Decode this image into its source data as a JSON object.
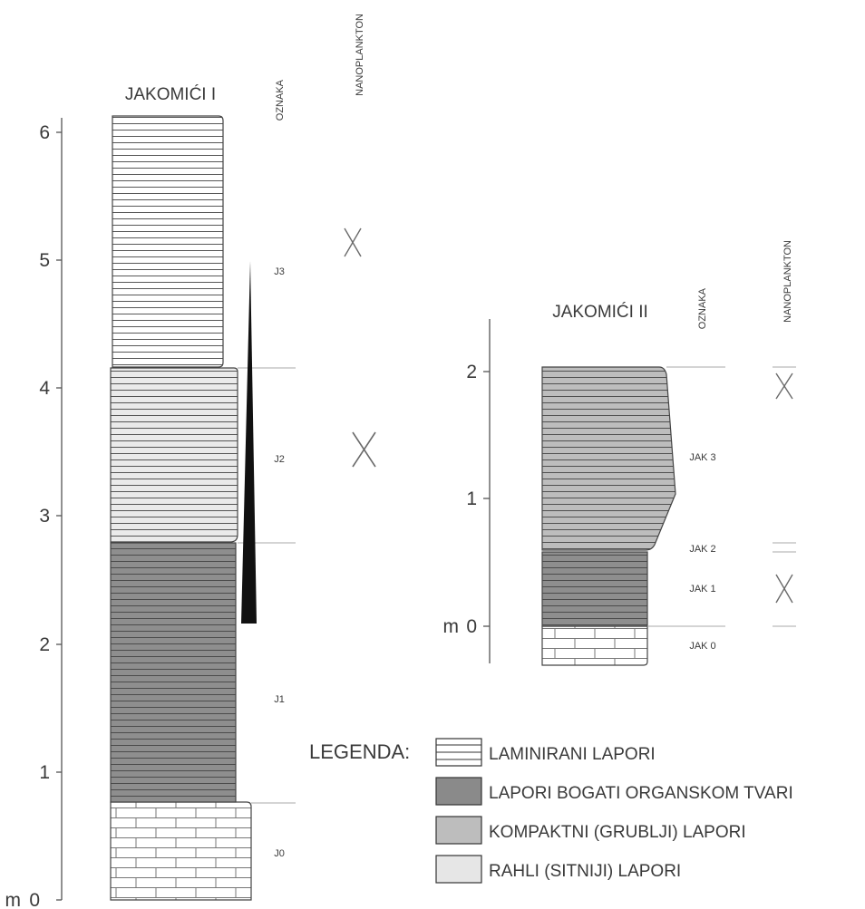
{
  "section1": {
    "title": "JAKOMIĆI I",
    "oznaka_header": "OZNAKA",
    "nanoplankton_header": "NANOPLANKTON",
    "axis_unit": "m",
    "axis_ticks": [
      "0",
      "1",
      "2",
      "3",
      "4",
      "5",
      "6"
    ],
    "labels": [
      "J0",
      "J1",
      "J2",
      "J3"
    ]
  },
  "section2": {
    "title": "JAKOMIĆI II",
    "oznaka_header": "OZNAKA",
    "nanoplankton_header": "NANOPLANKTON",
    "axis_unit": "m",
    "axis_ticks": [
      "0",
      "1",
      "2"
    ],
    "labels": [
      "JAK 0",
      "JAK 1",
      "JAK 2",
      "JAK 3"
    ]
  },
  "legend": {
    "title": "LEGENDA:",
    "items": [
      {
        "label": "LAMINIRANI LAPORI",
        "swatch": "#ffffff"
      },
      {
        "label": "LAPORI BOGATI ORGANSKOM TVARI",
        "swatch": "#8a8a8a"
      },
      {
        "label": "KOMPAKTNI (GRUBLJI) LAPORI",
        "swatch": "#bdbdbd"
      },
      {
        "label": "RAHLI (SITNIJI) LAPORI",
        "swatch": "#e6e6e6"
      }
    ]
  },
  "colors": {
    "dark": "#8e8e8e",
    "light": "#eaeaea",
    "white": "#ffffff",
    "line": "#555555",
    "mark": "#6a6a6a"
  }
}
